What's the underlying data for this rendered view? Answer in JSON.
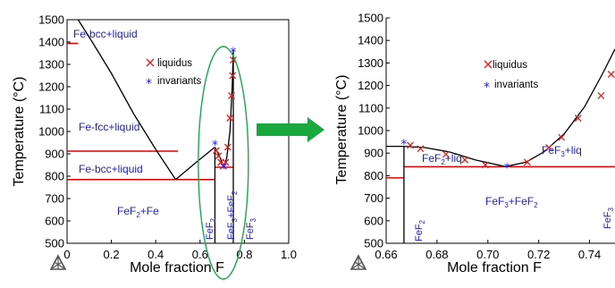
{
  "colors": {
    "phase_boundary": "#000000",
    "invariant_line": "#e00000",
    "liquidus_marker": "#e02020",
    "invariant_marker": "#1a1aff",
    "region_label": "#2020c0",
    "zoom_ellipse": "#1aa84a",
    "zoom_arrow": "#19a83e",
    "logo": "#555555"
  },
  "icons": {
    "logo": "factsage-triangle-logo",
    "arrow": "green-right-arrow"
  },
  "chart_data": [
    {
      "type": "line",
      "panel": "left",
      "xlabel": "Mole fraction F",
      "ylabel": "Temperature (°C)",
      "xlim": [
        0,
        1.0
      ],
      "ylim": [
        500,
        1500
      ],
      "xticks": [
        "0",
        "0.2",
        "0.4",
        "0.6",
        "0.8",
        "1.0"
      ],
      "xtick_values": [
        0,
        0.2,
        0.4,
        0.6,
        0.8,
        1.0
      ],
      "yticks": [
        "500",
        "600",
        "700",
        "800",
        "900",
        "1000",
        "1100",
        "1200",
        "1300",
        "1400",
        "1500"
      ],
      "ytick_values": [
        500,
        600,
        700,
        800,
        900,
        1000,
        1100,
        1200,
        1300,
        1400,
        1500
      ],
      "grid": false,
      "legend": {
        "position": "top-right",
        "items": [
          "liquidus",
          "invariants"
        ]
      },
      "phase_boundaries": [
        {
          "x": [
            0.05,
            0.12,
            0.2,
            0.3,
            0.4,
            0.49
          ],
          "y": [
            1500,
            1390,
            1260,
            1080,
            920,
            785
          ]
        },
        {
          "x": [
            0.49,
            0.58,
            0.667
          ],
          "y": [
            785,
            860,
            930
          ]
        },
        {
          "x": [
            0.667,
            0.685,
            0.707
          ],
          "y": [
            930,
            895,
            840
          ]
        },
        {
          "x": [
            0.707,
            0.72,
            0.735,
            0.745,
            0.75
          ],
          "y": [
            840,
            880,
            1000,
            1200,
            1362
          ]
        },
        {
          "x": [
            0.667,
            0.667
          ],
          "y": [
            930,
            500
          ]
        },
        {
          "x": [
            0.75,
            0.75
          ],
          "y": [
            1362,
            500
          ]
        }
      ],
      "invariant_lines": [
        {
          "x": [
            0,
            0.05
          ],
          "y": [
            1394,
            1394
          ]
        },
        {
          "x": [
            0,
            0.5
          ],
          "y": [
            912,
            912
          ]
        },
        {
          "x": [
            0,
            0.667
          ],
          "y": [
            785,
            785
          ]
        },
        {
          "x": [
            0.667,
            0.75
          ],
          "y": [
            840,
            840
          ]
        }
      ],
      "series": [
        {
          "name": "liquidus",
          "marker": "x",
          "x": [
            0.673,
            0.683,
            0.694,
            0.705,
            0.716,
            0.725,
            0.735,
            0.742,
            0.747,
            0.75
          ],
          "y": [
            915,
            890,
            862,
            845,
            862,
            930,
            1060,
            1160,
            1250,
            1320
          ]
        },
        {
          "name": "invariants",
          "marker": "*",
          "x": [
            0.667,
            0.707,
            0.75
          ],
          "y": [
            945,
            840,
            1360
          ]
        }
      ],
      "region_labels": [
        "Fe-bcc+liquid",
        "Fe-fcc+liquid",
        "Fe-bcc+liquid",
        "FeF2+Fe",
        "FeF2",
        "FeF3+FeF2",
        "FeF3"
      ],
      "zoom_ellipse": true
    },
    {
      "type": "line",
      "panel": "right",
      "xlabel": "Mole fraction F",
      "ylabel": "Temperature (°C)",
      "xlim": [
        0.66,
        0.75
      ],
      "ylim": [
        500,
        1500
      ],
      "xticks": [
        "0.66",
        "0.68",
        "0.70",
        "0.72",
        "0.74"
      ],
      "xtick_values": [
        0.66,
        0.68,
        0.7,
        0.72,
        0.74
      ],
      "yticks": [
        "500",
        "600",
        "700",
        "800",
        "900",
        "1000",
        "1100",
        "1200",
        "1300",
        "1400",
        "1500"
      ],
      "ytick_values": [
        500,
        600,
        700,
        800,
        900,
        1000,
        1100,
        1200,
        1300,
        1400,
        1500
      ],
      "grid": false,
      "legend": {
        "position": "top-center",
        "items": [
          "liquidus",
          "invariants"
        ]
      },
      "phase_boundaries": [
        {
          "x": [
            0.66,
            0.667
          ],
          "y": [
            930,
            930
          ]
        },
        {
          "x": [
            0.667,
            0.675,
            0.685,
            0.695,
            0.707
          ],
          "y": [
            930,
            925,
            905,
            870,
            840
          ]
        },
        {
          "x": [
            0.707,
            0.715,
            0.722,
            0.73,
            0.738,
            0.745,
            0.75
          ],
          "y": [
            840,
            860,
            905,
            985,
            1105,
            1250,
            1362
          ]
        },
        {
          "x": [
            0.667,
            0.667
          ],
          "y": [
            930,
            500
          ]
        }
      ],
      "invariant_lines": [
        {
          "x": [
            0.66,
            0.667
          ],
          "y": [
            790,
            790
          ]
        },
        {
          "x": [
            0.667,
            0.75
          ],
          "y": [
            840,
            840
          ]
        }
      ],
      "series": [
        {
          "name": "liquidus",
          "marker": "x",
          "x": [
            0.6695,
            0.6735,
            0.6835,
            0.691,
            0.699,
            0.7155,
            0.724,
            0.729,
            0.7355,
            0.7445,
            0.7485
          ],
          "y": [
            935,
            920,
            895,
            870,
            848,
            860,
            925,
            970,
            1055,
            1155,
            1250
          ]
        },
        {
          "name": "invariants",
          "marker": "*",
          "x": [
            0.667,
            0.7075
          ],
          "y": [
            945,
            840
          ]
        }
      ],
      "region_labels": [
        "FeF2+liq",
        "FeF3+liq",
        "FeF2",
        "FeF3+FeF2",
        "FeF3"
      ]
    }
  ]
}
